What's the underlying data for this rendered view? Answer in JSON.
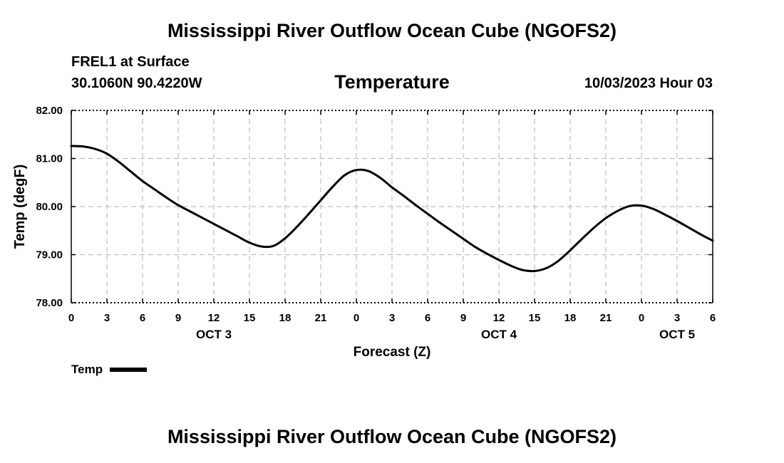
{
  "header": {
    "title": "Mississippi River Outflow Ocean Cube (NGOFS2)",
    "station": "FREL1 at Surface",
    "coords": "30.1060N  90.4220W",
    "plot_title": "Temperature",
    "datetime": "10/03/2023 Hour 03"
  },
  "footer": {
    "title": "Mississippi River Outflow Ocean Cube (NGOFS2)"
  },
  "legend": {
    "label": "Temp"
  },
  "chart_data": {
    "type": "line",
    "title": "Temperature",
    "xlabel": "Forecast (Z)",
    "ylabel": "Temp (degF)",
    "xlim": [
      0,
      54
    ],
    "ylim": [
      78,
      82
    ],
    "x_ticks": [
      0,
      3,
      6,
      9,
      12,
      15,
      18,
      21,
      24,
      27,
      30,
      33,
      36,
      39,
      42,
      45,
      48,
      51,
      54
    ],
    "x_tick_labels": [
      "0",
      "3",
      "6",
      "9",
      "12",
      "15",
      "18",
      "21",
      "0",
      "3",
      "6",
      "9",
      "12",
      "15",
      "18",
      "21",
      "0",
      "3",
      "6"
    ],
    "y_ticks": [
      78,
      79,
      80,
      81,
      82
    ],
    "y_tick_labels": [
      "78.00",
      "79.00",
      "80.00",
      "81.00",
      "82.00"
    ],
    "day_labels": [
      {
        "x": 12,
        "label": "OCT 3"
      },
      {
        "x": 36,
        "label": "OCT 4"
      },
      {
        "x": 51,
        "label": "OCT 5"
      }
    ],
    "grid": true,
    "series": [
      {
        "name": "Temp",
        "color": "#000000",
        "x": [
          0,
          1,
          2,
          3,
          4,
          5,
          6,
          7,
          8,
          9,
          10,
          11,
          12,
          13,
          14,
          15,
          16,
          17,
          18,
          19,
          20,
          21,
          22,
          23,
          24,
          25,
          26,
          27,
          28,
          29,
          30,
          31,
          32,
          33,
          34,
          35,
          36,
          37,
          38,
          39,
          40,
          41,
          42,
          43,
          44,
          45,
          46,
          47,
          48,
          49,
          50,
          51,
          52,
          53,
          54
        ],
        "values": [
          81.26,
          81.25,
          81.2,
          81.1,
          80.93,
          80.73,
          80.53,
          80.36,
          80.19,
          80.03,
          79.9,
          79.77,
          79.64,
          79.51,
          79.38,
          79.25,
          79.17,
          79.18,
          79.34,
          79.58,
          79.85,
          80.13,
          80.41,
          80.65,
          80.76,
          80.74,
          80.6,
          80.4,
          80.22,
          80.03,
          79.85,
          79.67,
          79.5,
          79.33,
          79.16,
          79.02,
          78.89,
          78.77,
          78.68,
          78.66,
          78.72,
          78.87,
          79.09,
          79.33,
          79.56,
          79.76,
          79.91,
          80.01,
          80.02,
          79.95,
          79.83,
          79.7,
          79.56,
          79.42,
          79.29
        ]
      }
    ]
  }
}
